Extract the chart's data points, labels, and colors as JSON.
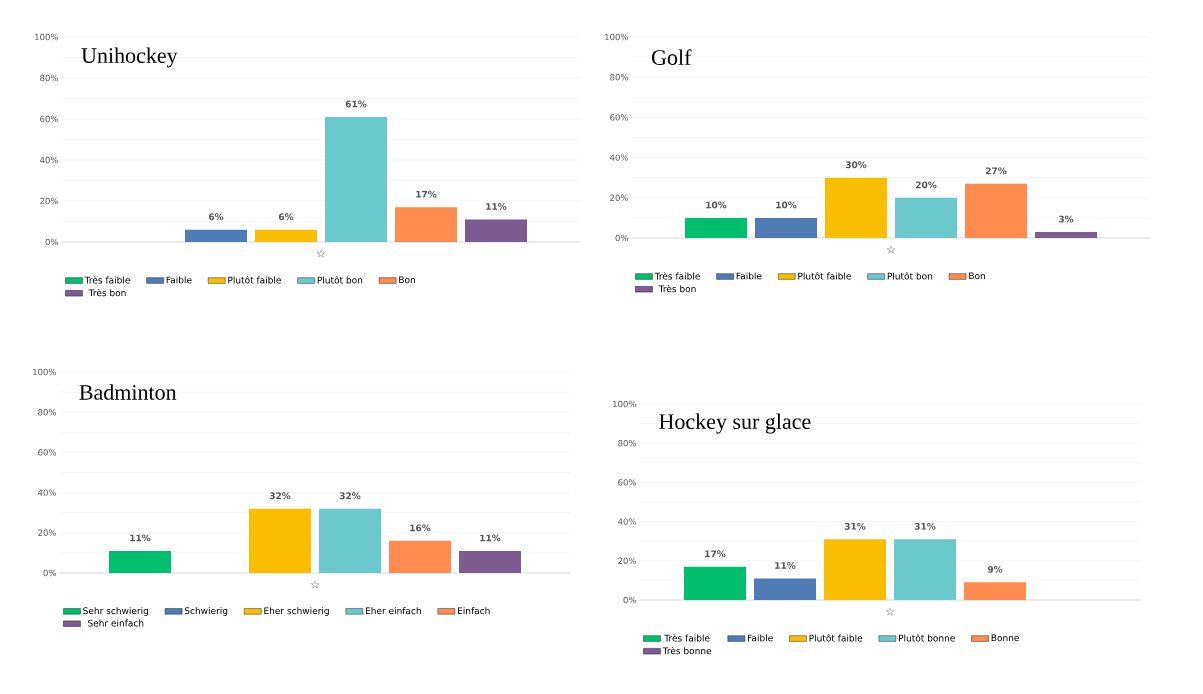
{
  "chart_data": [
    {
      "type": "bar",
      "title": "Unihockey",
      "categories": [
        "☆"
      ],
      "series": [
        {
          "name": "Très faible",
          "color": "#00bf6f",
          "values": [
            0
          ],
          "value_labels": [
            null
          ]
        },
        {
          "name": "Faible",
          "color": "#507cb6",
          "values": [
            6
          ],
          "value_labels": [
            "6%"
          ]
        },
        {
          "name": "Plutôt faible",
          "color": "#f9be00",
          "values": [
            6
          ],
          "value_labels": [
            "6%"
          ]
        },
        {
          "name": "Plutôt bon",
          "color": "#6bc8cd",
          "values": [
            61
          ],
          "value_labels": [
            "61%"
          ]
        },
        {
          "name": "Bon",
          "color": "#ff8b4f",
          "values": [
            17
          ],
          "value_labels": [
            "17%"
          ]
        },
        {
          "name": "Très bon",
          "color": "#7d5c91",
          "values": [
            11
          ],
          "value_labels": [
            "11%"
          ]
        }
      ],
      "ylim": [
        0,
        100
      ],
      "yticks": [
        {
          "value": 0,
          "label": "0%"
        },
        {
          "value": 10,
          "label": null
        },
        {
          "value": 20,
          "label": "20%"
        },
        {
          "value": 30,
          "label": null
        },
        {
          "value": 40,
          "label": "40%"
        },
        {
          "value": 50,
          "label": null
        },
        {
          "value": 60,
          "label": "60%"
        },
        {
          "value": 70,
          "label": null
        },
        {
          "value": 80,
          "label": "80%"
        },
        {
          "value": 90,
          "label": null
        },
        {
          "value": 100,
          "label": "100%"
        }
      ],
      "grid": "y",
      "legend": "bottom"
    },
    {
      "type": "bar",
      "title": "Golf",
      "categories": [
        "☆"
      ],
      "series": [
        {
          "name": "Très faible",
          "color": "#00bf6f",
          "values": [
            10
          ],
          "value_labels": [
            "10%"
          ]
        },
        {
          "name": "Faible",
          "color": "#507cb6",
          "values": [
            10
          ],
          "value_labels": [
            "10%"
          ]
        },
        {
          "name": "Plutôt faible",
          "color": "#f9be00",
          "values": [
            30
          ],
          "value_labels": [
            "30%"
          ]
        },
        {
          "name": "Plutôt bon",
          "color": "#6bc8cd",
          "values": [
            20
          ],
          "value_labels": [
            "20%"
          ]
        },
        {
          "name": "Bon",
          "color": "#ff8b4f",
          "values": [
            27
          ],
          "value_labels": [
            "27%"
          ]
        },
        {
          "name": "Très bon",
          "color": "#7d5c91",
          "values": [
            3
          ],
          "value_labels": [
            "3%"
          ]
        }
      ],
      "ylim": [
        0,
        100
      ],
      "yticks": [
        {
          "value": 0,
          "label": "0%"
        },
        {
          "value": 10,
          "label": null
        },
        {
          "value": 20,
          "label": "20%"
        },
        {
          "value": 30,
          "label": null
        },
        {
          "value": 40,
          "label": "40%"
        },
        {
          "value": 50,
          "label": null
        },
        {
          "value": 60,
          "label": "60%"
        },
        {
          "value": 70,
          "label": null
        },
        {
          "value": 80,
          "label": "80%"
        },
        {
          "value": 90,
          "label": null
        },
        {
          "value": 100,
          "label": "100%"
        }
      ],
      "grid": "y",
      "legend": "bottom"
    },
    {
      "type": "bar",
      "title": "Badminton",
      "categories": [
        "☆"
      ],
      "series": [
        {
          "name": "Sehr schwierig",
          "color": "#00bf6f",
          "values": [
            11
          ],
          "value_labels": [
            "11%"
          ]
        },
        {
          "name": "Schwierig",
          "color": "#507cb6",
          "values": [
            0
          ],
          "value_labels": [
            null
          ]
        },
        {
          "name": "Eher schwierig",
          "color": "#f9be00",
          "values": [
            32
          ],
          "value_labels": [
            "32%"
          ]
        },
        {
          "name": "Eher einfach",
          "color": "#6bc8cd",
          "values": [
            32
          ],
          "value_labels": [
            "32%"
          ]
        },
        {
          "name": "Einfach",
          "color": "#ff8b4f",
          "values": [
            16
          ],
          "value_labels": [
            "16%"
          ]
        },
        {
          "name": "Sehr einfach",
          "color": "#7d5c91",
          "values": [
            11
          ],
          "value_labels": [
            "11%"
          ]
        }
      ],
      "ylim": [
        0,
        100
      ],
      "yticks": [
        {
          "value": 0,
          "label": "0%"
        },
        {
          "value": 10,
          "label": null
        },
        {
          "value": 20,
          "label": "20%"
        },
        {
          "value": 30,
          "label": null
        },
        {
          "value": 40,
          "label": "40%"
        },
        {
          "value": 50,
          "label": null
        },
        {
          "value": 60,
          "label": "60%"
        },
        {
          "value": 70,
          "label": null
        },
        {
          "value": 80,
          "label": "80%"
        },
        {
          "value": 90,
          "label": null
        },
        {
          "value": 100,
          "label": "100%"
        }
      ],
      "grid": "y",
      "legend": "bottom"
    },
    {
      "type": "bar",
      "title": "Hockey sur glace",
      "categories": [
        "☆"
      ],
      "series": [
        {
          "name": "Très faible",
          "color": "#00bf6f",
          "values": [
            17
          ],
          "value_labels": [
            "17%"
          ]
        },
        {
          "name": "Faible",
          "color": "#507cb6",
          "values": [
            11
          ],
          "value_labels": [
            "11%"
          ]
        },
        {
          "name": "Plutôt faible",
          "color": "#f9be00",
          "values": [
            31
          ],
          "value_labels": [
            "31%"
          ]
        },
        {
          "name": "Plutôt bonne",
          "color": "#6bc8cd",
          "values": [
            31
          ],
          "value_labels": [
            "31%"
          ]
        },
        {
          "name": "Bonne",
          "color": "#ff8b4f",
          "values": [
            9
          ],
          "value_labels": [
            "9%"
          ]
        },
        {
          "name": "Très bonne",
          "color": "#7d5c91",
          "values": [
            0
          ],
          "value_labels": [
            null
          ]
        }
      ],
      "ylim": [
        0,
        100
      ],
      "yticks": [
        {
          "value": 0,
          "label": "0%"
        },
        {
          "value": 10,
          "label": null
        },
        {
          "value": 20,
          "label": "20%"
        },
        {
          "value": 30,
          "label": null
        },
        {
          "value": 40,
          "label": "40%"
        },
        {
          "value": 50,
          "label": null
        },
        {
          "value": 60,
          "label": "60%"
        },
        {
          "value": 70,
          "label": null
        },
        {
          "value": 80,
          "label": "80%"
        },
        {
          "value": 90,
          "label": null
        },
        {
          "value": 100,
          "label": "100%"
        }
      ],
      "grid": "y",
      "legend": "bottom"
    }
  ]
}
